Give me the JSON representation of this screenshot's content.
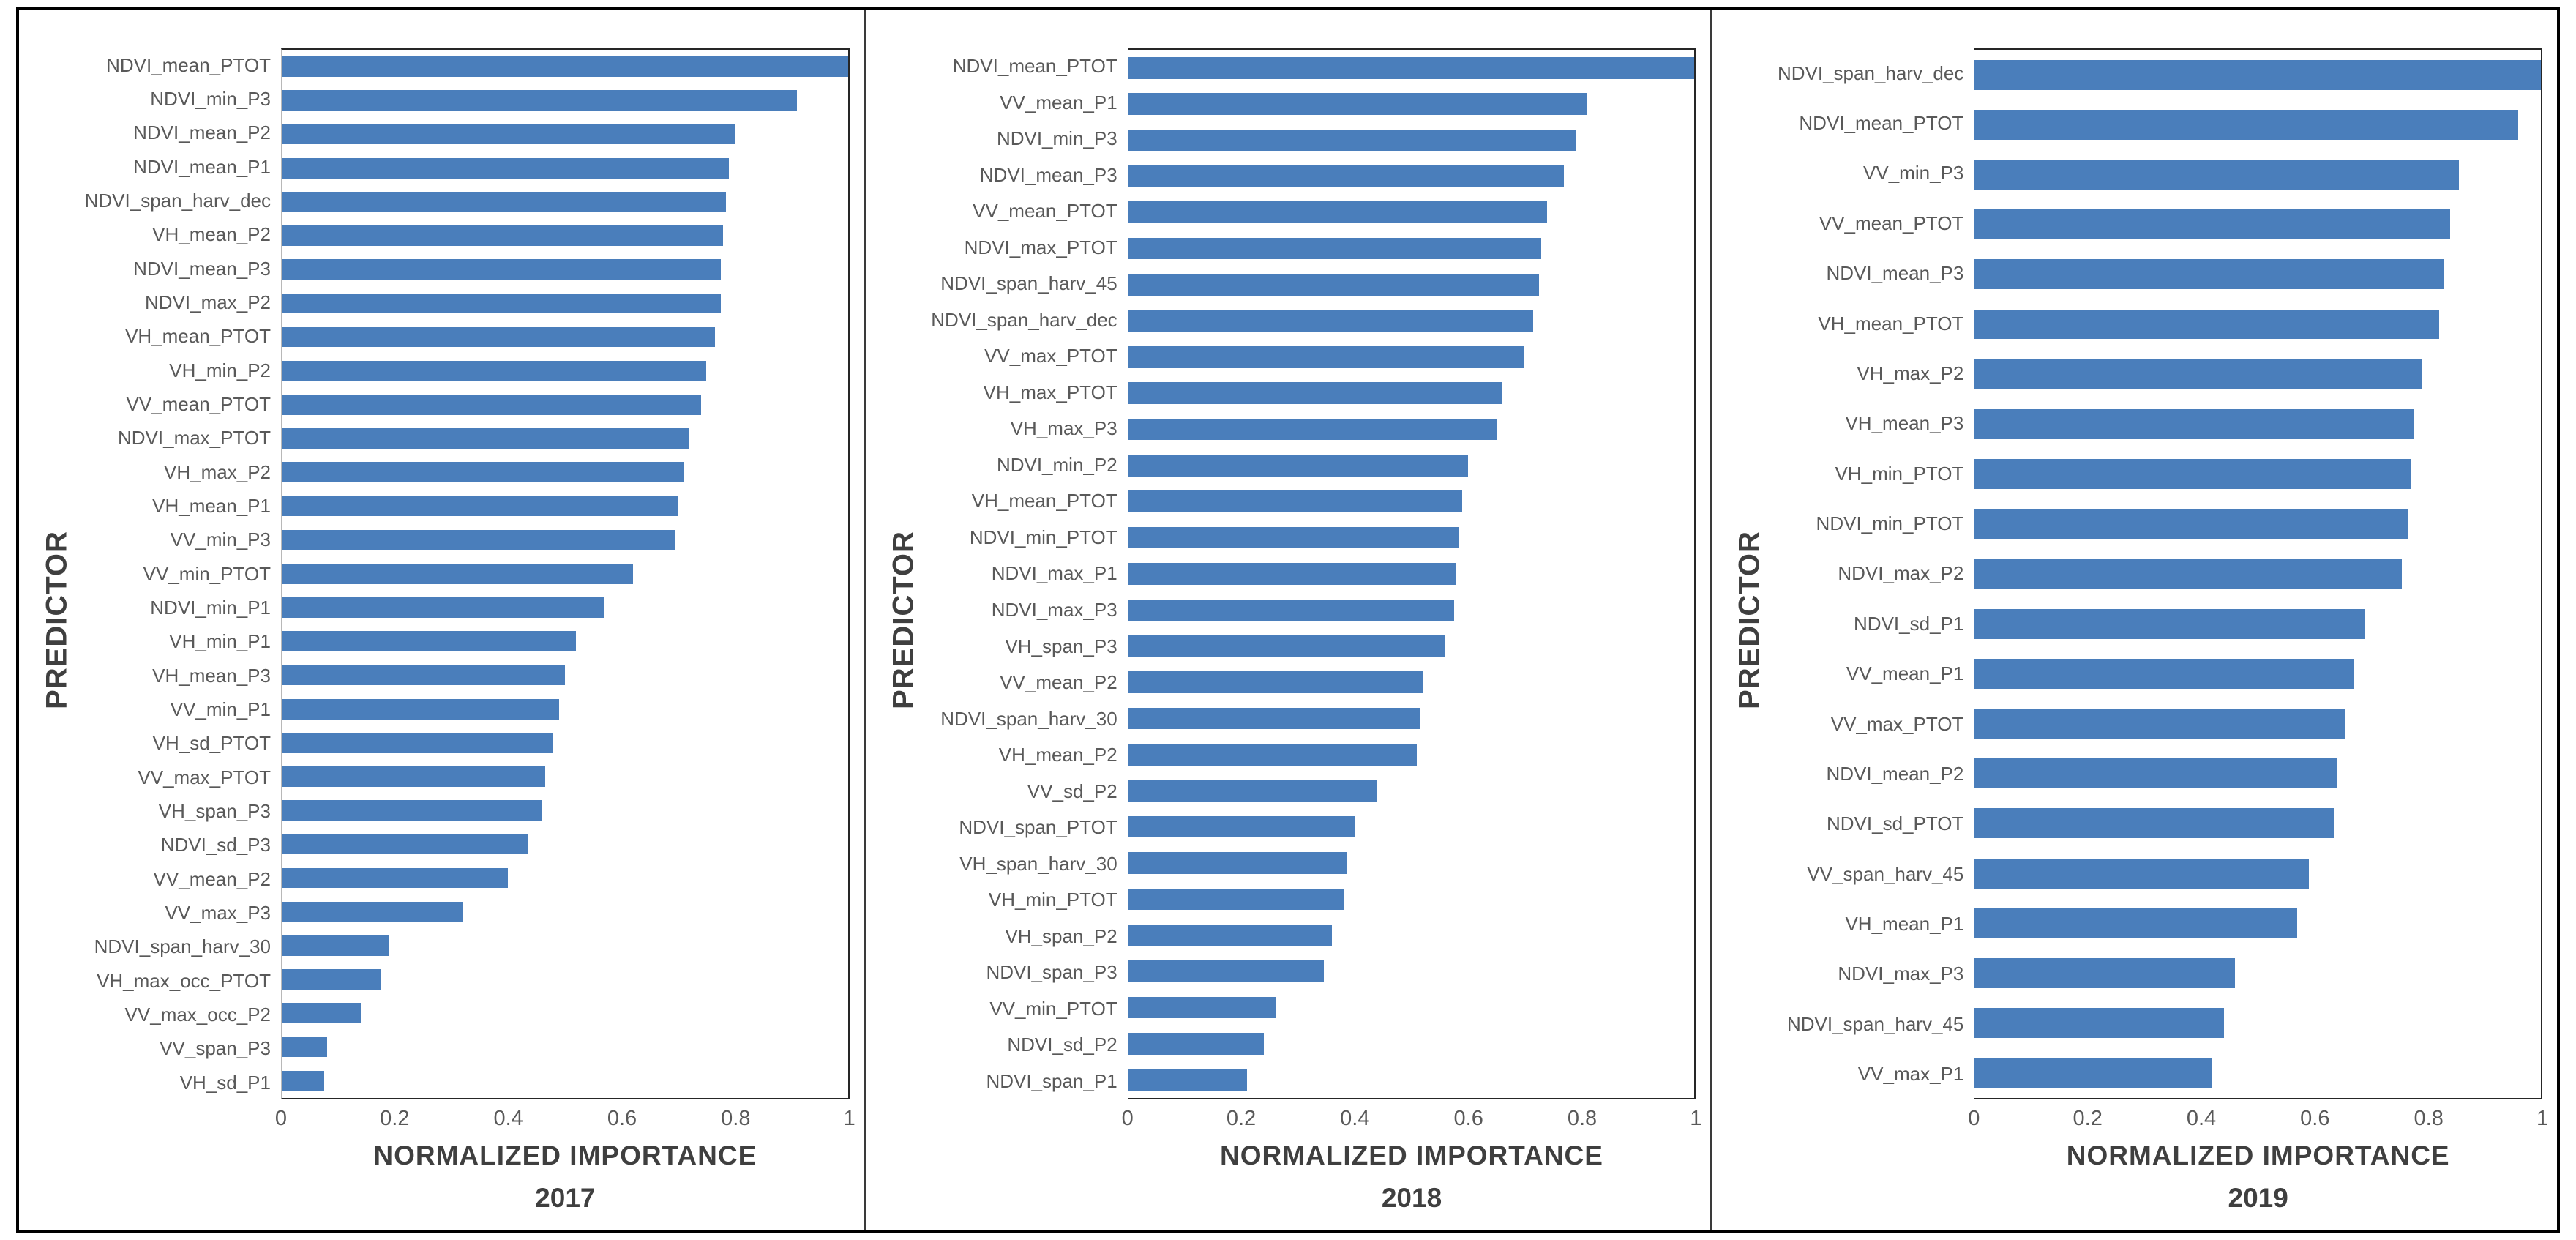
{
  "styles": {
    "bar_color": "#4A7EBB",
    "frame_color": "#262626",
    "label_color": "#595959",
    "axis_title_color": "#3f3f3f"
  },
  "chart_data": [
    {
      "type": "bar",
      "orientation": "horizontal",
      "title": "2017",
      "xlabel": "NORMALIZED IMPORTANCE",
      "ylabel": "PREDICTOR",
      "xlim": [
        0,
        1
      ],
      "grid": false,
      "xticks": [
        0,
        0.2,
        0.4,
        0.6,
        0.8,
        1
      ],
      "xtick_labels": [
        "0",
        "0.2",
        "0.4",
        "0.6",
        "0.8",
        "1"
      ],
      "categories": [
        "NDVI_mean_PTOT",
        "NDVI_min_P3",
        "NDVI_mean_P2",
        "NDVI_mean_P1",
        "NDVI_span_harv_dec",
        "VH_mean_P2",
        "NDVI_mean_P3",
        "NDVI_max_P2",
        "VH_mean_PTOT",
        "VH_min_P2",
        "VV_mean_PTOT",
        "NDVI_max_PTOT",
        "VH_max_P2",
        "VH_mean_P1",
        "VV_min_P3",
        "VV_min_PTOT",
        "NDVI_min_P1",
        "VH_min_P1",
        "VH_mean_P3",
        "VV_min_P1",
        "VH_sd_PTOT",
        "VV_max_PTOT",
        "VH_span_P3",
        "NDVI_sd_P3",
        "VV_mean_P2",
        "VV_max_P3",
        "NDVI_span_harv_30",
        "VH_max_occ_PTOT",
        "VV_max_occ_P2",
        "VV_span_P3",
        "VH_sd_P1"
      ],
      "values": [
        1.0,
        0.91,
        0.8,
        0.79,
        0.785,
        0.78,
        0.775,
        0.775,
        0.765,
        0.75,
        0.74,
        0.72,
        0.71,
        0.7,
        0.695,
        0.62,
        0.57,
        0.52,
        0.5,
        0.49,
        0.48,
        0.465,
        0.46,
        0.435,
        0.4,
        0.32,
        0.19,
        0.175,
        0.14,
        0.08,
        0.075
      ]
    },
    {
      "type": "bar",
      "orientation": "horizontal",
      "title": "2018",
      "xlabel": "NORMALIZED IMPORTANCE",
      "ylabel": "PREDICTOR",
      "xlim": [
        0,
        1
      ],
      "grid": false,
      "xticks": [
        0,
        0.2,
        0.4,
        0.6,
        0.8,
        1
      ],
      "xtick_labels": [
        "0",
        "0.2",
        "0.4",
        "0.6",
        "0.8",
        "1"
      ],
      "categories": [
        "NDVI_mean_PTOT",
        "VV_mean_P1",
        "NDVI_min_P3",
        "NDVI_mean_P3",
        "VV_mean_PTOT",
        "NDVI_max_PTOT",
        "NDVI_span_harv_45",
        "NDVI_span_harv_dec",
        "VV_max_PTOT",
        "VH_max_PTOT",
        "VH_max_P3",
        "NDVI_min_P2",
        "VH_mean_PTOT",
        "NDVI_min_PTOT",
        "NDVI_max_P1",
        "NDVI_max_P3",
        "VH_span_P3",
        "VV_mean_P2",
        "NDVI_span_harv_30",
        "VH_mean_P2",
        "VV_sd_P2",
        "NDVI_span_PTOT",
        "VH_span_harv_30",
        "VH_min_PTOT",
        "VH_span_P2",
        "NDVI_span_P3",
        "VV_min_PTOT",
        "NDVI_sd_P2",
        "NDVI_span_P1"
      ],
      "values": [
        1.0,
        0.81,
        0.79,
        0.77,
        0.74,
        0.73,
        0.725,
        0.715,
        0.7,
        0.66,
        0.65,
        0.6,
        0.59,
        0.585,
        0.58,
        0.575,
        0.56,
        0.52,
        0.515,
        0.51,
        0.44,
        0.4,
        0.385,
        0.38,
        0.36,
        0.345,
        0.26,
        0.24,
        0.21
      ]
    },
    {
      "type": "bar",
      "orientation": "horizontal",
      "title": "2019",
      "xlabel": "NORMALIZED IMPORTANCE",
      "ylabel": "PREDICTOR",
      "xlim": [
        0,
        1
      ],
      "grid": false,
      "xticks": [
        0,
        0.2,
        0.4,
        0.6,
        0.8,
        1
      ],
      "xtick_labels": [
        "0",
        "0.2",
        "0.4",
        "0.6",
        "0.8",
        "1"
      ],
      "categories": [
        "NDVI_span_harv_dec",
        "NDVI_mean_PTOT",
        "VV_min_P3",
        "VV_mean_PTOT",
        "NDVI_mean_P3",
        "VH_mean_PTOT",
        "VH_max_P2",
        "VH_mean_P3",
        "VH_min_PTOT",
        "NDVI_min_PTOT",
        "NDVI_max_P2",
        "NDVI_sd_P1",
        "VV_mean_P1",
        "VV_max_PTOT",
        "NDVI_mean_P2",
        "NDVI_sd_PTOT",
        "VV_span_harv_45",
        "VH_mean_P1",
        "NDVI_max_P3",
        "NDVI_span_harv_45",
        "VV_max_P1"
      ],
      "values": [
        1.0,
        0.96,
        0.855,
        0.84,
        0.83,
        0.82,
        0.79,
        0.775,
        0.77,
        0.765,
        0.755,
        0.69,
        0.67,
        0.655,
        0.64,
        0.635,
        0.59,
        0.57,
        0.46,
        0.44,
        0.42
      ]
    }
  ]
}
